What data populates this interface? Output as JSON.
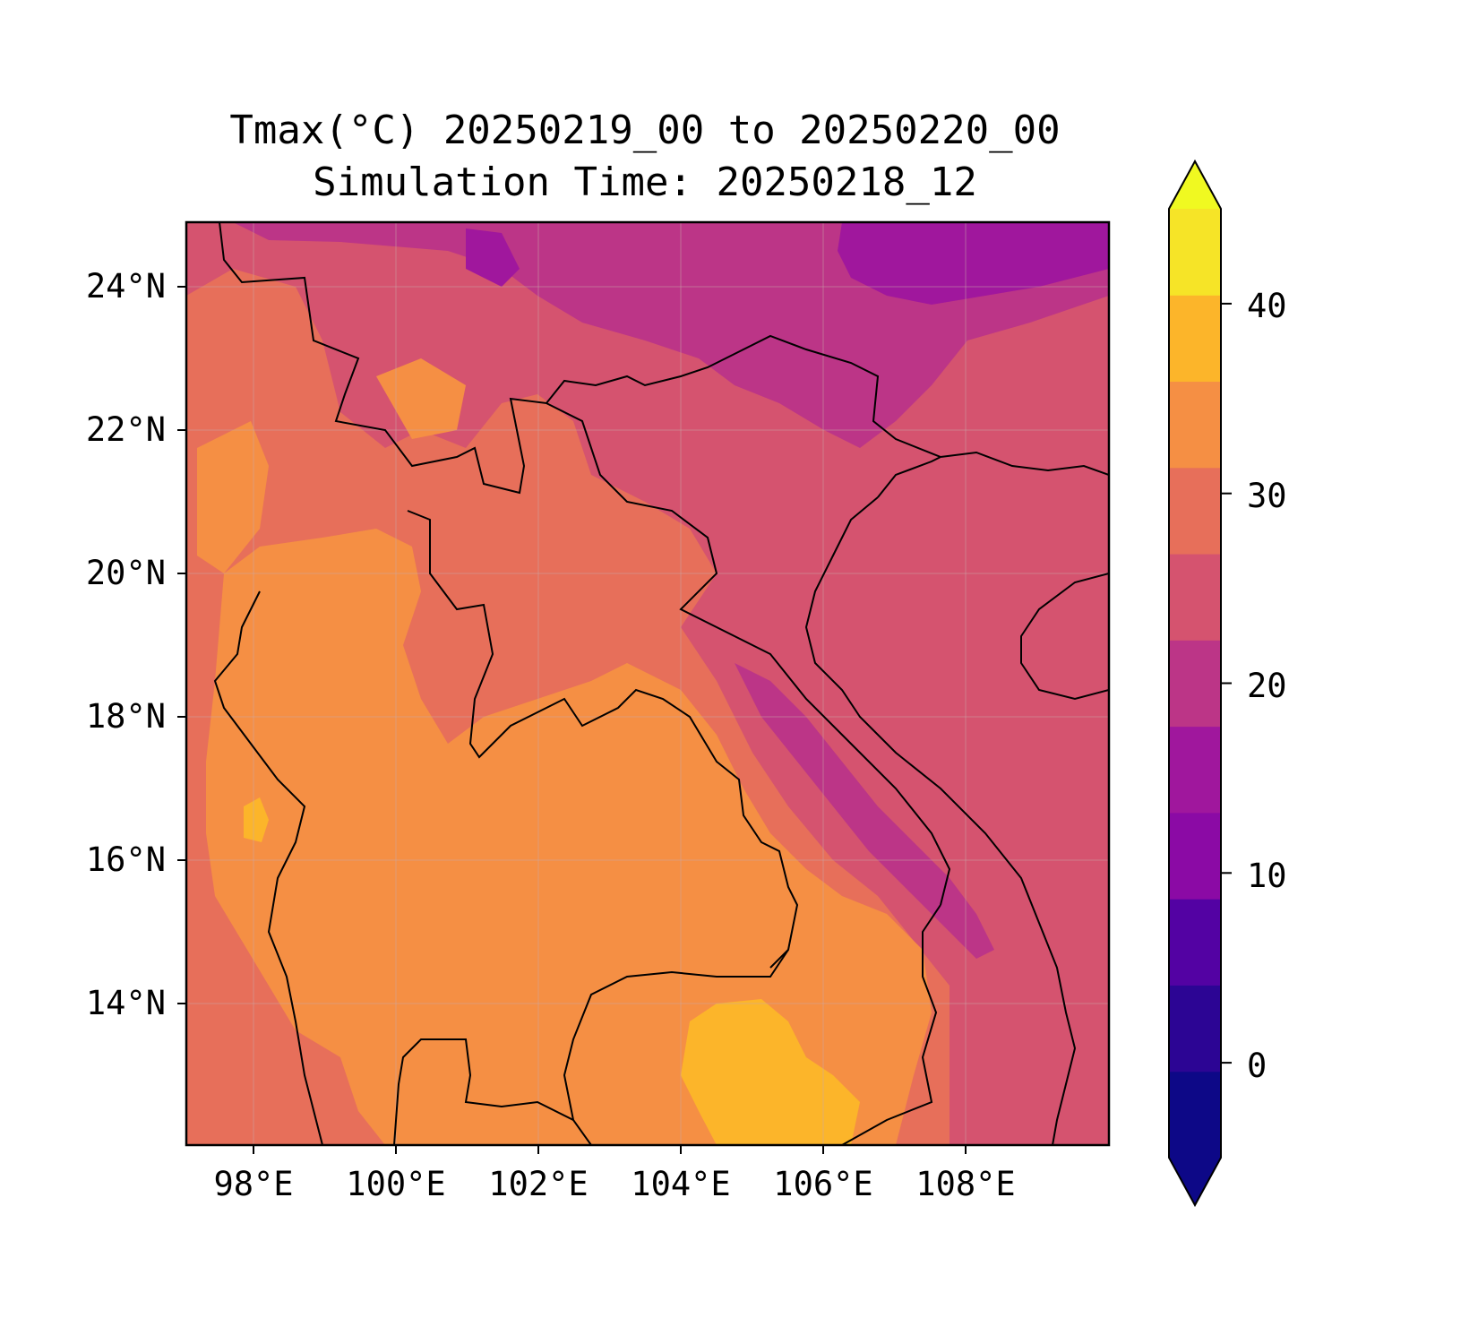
{
  "title": {
    "line1": "Tmax(°C) 20250219_00 to 20250220_00",
    "line2": "Simulation Time: 20250218_12"
  },
  "map": {
    "region": "Indochina",
    "field": "Tmax",
    "lon_range": [
      97,
      110
    ],
    "lat_range": [
      12,
      25
    ],
    "lat_ticks": [
      {
        "value": 24,
        "label": "24°N"
      },
      {
        "value": 22,
        "label": "22°N"
      },
      {
        "value": 20,
        "label": "20°N"
      },
      {
        "value": 18,
        "label": "18°N"
      },
      {
        "value": 16,
        "label": "16°N"
      },
      {
        "value": 14,
        "label": "14°N"
      }
    ],
    "lon_ticks": [
      {
        "value": 98,
        "label": "98°E"
      },
      {
        "value": 100,
        "label": "100°E"
      },
      {
        "value": 102,
        "label": "102°E"
      },
      {
        "value": 104,
        "label": "104°E"
      },
      {
        "value": 106,
        "label": "106°E"
      },
      {
        "value": 108,
        "label": "108°E"
      }
    ],
    "grid": true
  },
  "colorbar": {
    "colormap": "plasma",
    "extend": "both",
    "levels": [
      -5,
      0,
      5,
      10,
      15,
      20,
      25,
      30,
      35,
      40,
      45
    ],
    "colors": [
      "#0d0887",
      "#2c0594",
      "#5302a3",
      "#8b0aa5",
      "#a0179d",
      "#bc3587",
      "#d5536f",
      "#e76f5a",
      "#f58f44",
      "#fcb52a",
      "#f6e427"
    ],
    "under_color": "#0d0887",
    "over_color": "#f0f921",
    "ticks": [
      {
        "value": 0,
        "label": "0"
      },
      {
        "value": 10,
        "label": "10"
      },
      {
        "value": 20,
        "label": "20"
      },
      {
        "value": 30,
        "label": "30"
      },
      {
        "value": 40,
        "label": "40"
      }
    ]
  }
}
